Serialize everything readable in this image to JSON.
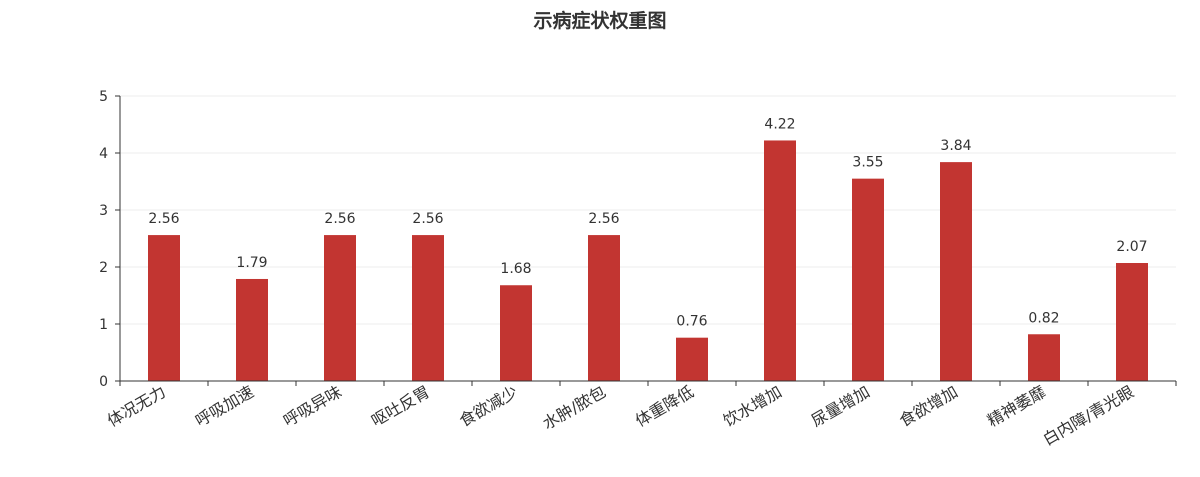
{
  "chart_data": {
    "type": "bar",
    "title": "示病症状权重图",
    "categories": [
      "体况无力",
      "呼吸加速",
      "呼吸异味",
      "呕吐反胃",
      "食欲减少",
      "水肿/脓包",
      "体重降低",
      "饮水增加",
      "尿量增加",
      "食欲增加",
      "精神萎靡",
      "白内障/青光眼"
    ],
    "values": [
      2.56,
      1.79,
      2.56,
      2.56,
      1.68,
      2.56,
      0.76,
      4.22,
      3.55,
      3.84,
      0.82,
      2.07
    ],
    "value_labels": [
      "2.56",
      "1.79",
      "2.56",
      "2.56",
      "1.68",
      "2.56",
      "0.76",
      "4.22",
      "3.55",
      "3.84",
      "0.82",
      "2.07"
    ],
    "ylim": [
      0,
      5
    ],
    "yticks": [
      "0",
      "1",
      "2",
      "3",
      "4",
      "5"
    ],
    "xlabel": "",
    "ylabel": "",
    "grid": true,
    "bar_color": "#c23531"
  }
}
